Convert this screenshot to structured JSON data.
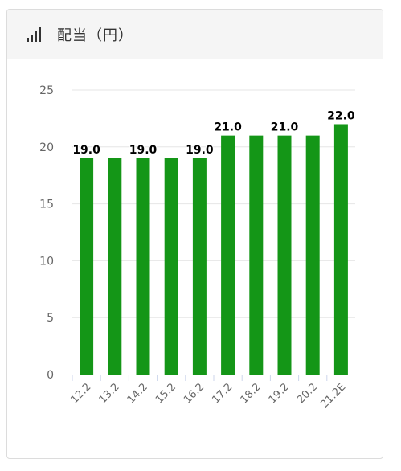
{
  "header": {
    "icon": "bar-signal-icon",
    "title": "配当（円）"
  },
  "colors": {
    "bar": "#149617",
    "grid": "#e6e6e6",
    "axis_text": "#666666",
    "header_bg": "#f5f5f5"
  },
  "chart_data": {
    "type": "bar",
    "title": "配当（円）",
    "categories": [
      "12.2",
      "13.2",
      "14.2",
      "15.2",
      "16.2",
      "17.2",
      "18.2",
      "19.2",
      "20.2",
      "21.2E"
    ],
    "values": [
      19.0,
      19.0,
      19.0,
      19.0,
      19.0,
      21.0,
      21.0,
      21.0,
      21.0,
      22.0
    ],
    "data_labels": [
      "19.0",
      "",
      "19.0",
      "",
      "19.0",
      "21.0",
      "",
      "21.0",
      "",
      "22.0"
    ],
    "ylim": [
      0,
      25
    ],
    "yticks": [
      0,
      5,
      10,
      15,
      20,
      25
    ],
    "grid": true,
    "legend": "none"
  }
}
